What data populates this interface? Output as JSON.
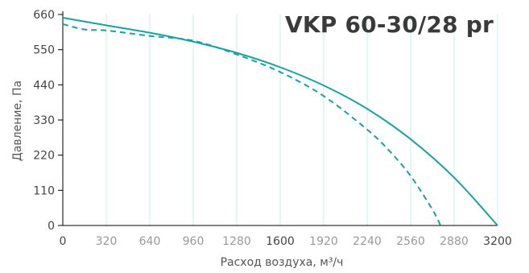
{
  "chart_data": {
    "type": "line",
    "title": "VKP 60-30/28 pr",
    "xlabel": "Расход воздуха, м³/ч",
    "ylabel": "Давление, Па",
    "xlim": [
      0,
      3200
    ],
    "ylim": [
      0,
      660
    ],
    "x_ticks": [
      "0",
      "320",
      "640",
      "960",
      "1280",
      "1600",
      "1920",
      "2240",
      "2560",
      "2880",
      "3200"
    ],
    "y_ticks": [
      "0",
      "110",
      "220",
      "330",
      "440",
      "550",
      "660"
    ],
    "grid": "vertical",
    "colors": {
      "curve": "#17a2a2",
      "grid": "#c9eded",
      "axis": "#000000",
      "tick_text_muted": "#999999",
      "tick_text": "#444444"
    },
    "series": [
      {
        "style": "solid",
        "x": [
          0,
          320,
          640,
          960,
          1280,
          1600,
          1920,
          2240,
          2560,
          2880,
          3200
        ],
        "y": [
          650,
          626,
          603,
          575,
          540,
          495,
          438,
          365,
          270,
          150,
          0
        ]
      },
      {
        "style": "dashed",
        "x": [
          0,
          160,
          320,
          640,
          960,
          1280,
          1600,
          1920,
          2240,
          2400,
          2560,
          2720,
          2780
        ],
        "y": [
          630,
          613,
          610,
          593,
          578,
          535,
          480,
          405,
          300,
          235,
          155,
          50,
          0
        ]
      }
    ]
  }
}
